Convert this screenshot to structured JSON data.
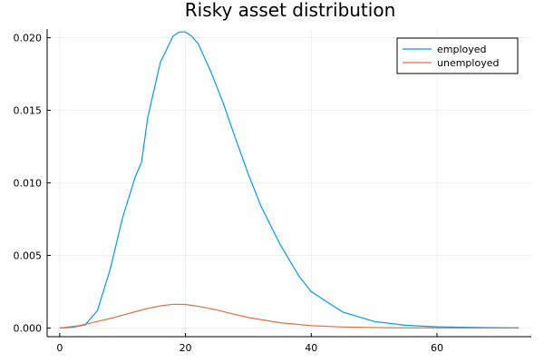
{
  "chart_data": {
    "type": "line",
    "title": "Risky asset distribution",
    "xlabel": "",
    "ylabel": "",
    "xlim": [
      -2,
      75
    ],
    "ylim": [
      -0.0006,
      0.0206
    ],
    "x_ticks": [
      {
        "value": 0,
        "label": "0"
      },
      {
        "value": 20,
        "label": "20"
      },
      {
        "value": 40,
        "label": "40"
      },
      {
        "value": 60,
        "label": "60"
      }
    ],
    "y_ticks": [
      {
        "value": 0.0,
        "label": "0.000"
      },
      {
        "value": 0.005,
        "label": "0.005"
      },
      {
        "value": 0.01,
        "label": "0.010"
      },
      {
        "value": 0.015,
        "label": "0.015"
      },
      {
        "value": 0.02,
        "label": "0.020"
      }
    ],
    "grid": true,
    "legend": "top-right",
    "series": [
      {
        "name": "employed",
        "color": "#009AFA",
        "x": [
          0,
          2,
          4,
          6,
          8,
          10,
          12,
          13,
          14,
          16,
          18,
          19,
          20,
          21,
          22,
          24,
          26,
          28,
          30,
          32,
          35,
          38,
          40,
          45,
          50,
          55,
          60,
          65,
          70,
          73
        ],
        "y": [
          0.0,
          5e-05,
          0.0002,
          0.0012,
          0.004,
          0.0076,
          0.0104,
          0.0114,
          0.0145,
          0.0183,
          0.0201,
          0.0204,
          0.0204,
          0.0201,
          0.0196,
          0.0177,
          0.0155,
          0.013,
          0.0106,
          0.0084,
          0.0058,
          0.0036,
          0.0025,
          0.0011,
          0.00045,
          0.00018,
          8e-05,
          4e-05,
          2e-05,
          1e-05
        ]
      },
      {
        "name": "unemployed",
        "color": "#E26F46",
        "x": [
          0,
          3,
          5,
          8,
          10,
          12,
          14,
          16,
          18,
          20,
          22,
          25,
          28,
          30,
          35,
          40,
          45,
          50,
          55,
          60,
          65,
          73
        ],
        "y": [
          0.0,
          0.00015,
          0.00035,
          0.00065,
          0.00088,
          0.00112,
          0.00135,
          0.00152,
          0.00163,
          0.00162,
          0.0015,
          0.00124,
          0.00092,
          0.00072,
          0.00036,
          0.00016,
          7e-05,
          3e-05,
          1e-05,
          5e-06,
          2e-06,
          1e-06
        ]
      }
    ]
  }
}
